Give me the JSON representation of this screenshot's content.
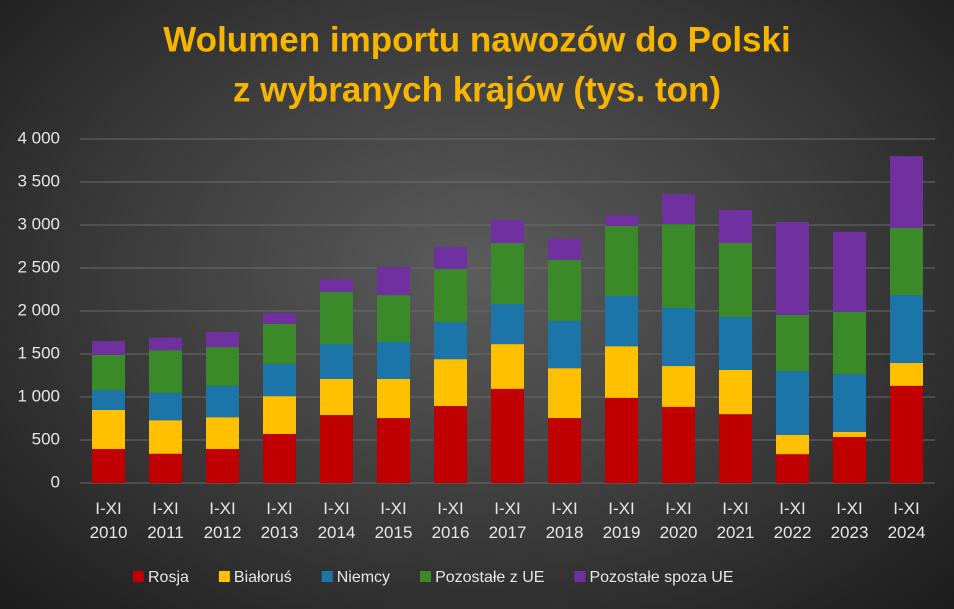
{
  "chart_data": {
    "type": "stacked-bar",
    "title": [
      "Wolumen importu nawozów do Polski",
      "z wybranych krajów (tys. ton)"
    ],
    "categories": [
      "I-XI 2010",
      "I-XI 2011",
      "I-XI 2012",
      "I-XI 2013",
      "I-XI 2014",
      "I-XI 2015",
      "I-XI 2016",
      "I-XI 2017",
      "I-XI 2018",
      "I-XI 2019",
      "I-XI 2020",
      "I-XI 2021",
      "I-XI 2022",
      "I-XI 2023",
      "I-XI 2024"
    ],
    "series": [
      {
        "name": "Rosja",
        "color": "#c00000",
        "values": [
          395,
          340,
          395,
          570,
          790,
          755,
          895,
          1095,
          755,
          990,
          885,
          800,
          335,
          535,
          1130
        ]
      },
      {
        "name": "Białoruś",
        "color": "#ffc000",
        "values": [
          455,
          390,
          370,
          440,
          420,
          455,
          545,
          520,
          580,
          600,
          475,
          515,
          225,
          60,
          265
        ]
      },
      {
        "name": "Niemcy",
        "color": "#1b75a9",
        "values": [
          230,
          315,
          365,
          375,
          405,
          430,
          430,
          465,
          550,
          585,
          675,
          615,
          740,
          670,
          790
        ]
      },
      {
        "name": "Pozostałe z UE",
        "color": "#3b8a2a",
        "values": [
          410,
          500,
          450,
          465,
          605,
          545,
          620,
          710,
          710,
          815,
          975,
          860,
          655,
          725,
          780
        ]
      },
      {
        "name": "Pozostałe spoza UE",
        "color": "#7030a0",
        "values": [
          160,
          145,
          175,
          125,
          150,
          325,
          255,
          270,
          245,
          125,
          350,
          385,
          1080,
          930,
          835
        ]
      }
    ],
    "ylim": [
      0,
      4000
    ],
    "yticks": [
      0,
      500,
      {
        "value": 1000,
        "label": "1 000"
      },
      {
        "value": 1500,
        "label": "1 500"
      },
      {
        "value": 2000,
        "label": "2 000"
      },
      {
        "value": 2500,
        "label": "2 500"
      },
      {
        "value": 3000,
        "label": "3 000"
      },
      {
        "value": 3500,
        "label": "3 500"
      },
      {
        "value": 4000,
        "label": "4 000"
      }
    ],
    "grid": true,
    "legend": "bottom"
  }
}
